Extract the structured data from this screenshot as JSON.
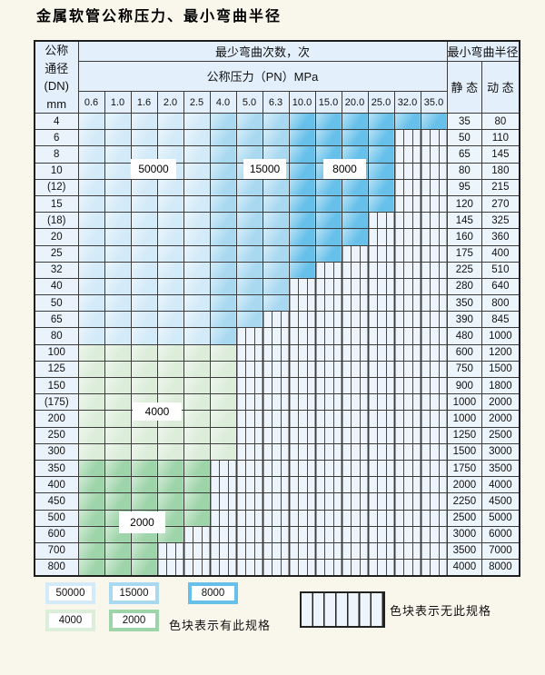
{
  "title": "金属软管公称压力、最小弯曲半径",
  "colors": {
    "c50000": "#d3eaf8",
    "c15000": "#a9d9f1",
    "c8000": "#66c0ea",
    "c4000": "#dcedda",
    "c2000": "#9ed4a9",
    "hatch_bg": "#eef4fb",
    "header_bg": "#e3effa",
    "grid": "#3c3c3c"
  },
  "table": {
    "header": {
      "dn_lines": [
        "公称",
        "通径",
        "(DN)",
        "mm"
      ],
      "bend_cycles_label": "最少弯曲次数，次",
      "bend_radius_label": "最小弯曲半径",
      "pressure_label": "公称压力（PN）MPa",
      "static_label": "静 态",
      "dynamic_label": "动 态",
      "pressures": [
        "0.6",
        "1.0",
        "1.6",
        "2.0",
        "2.5",
        "4.0",
        "5.0",
        "6.3",
        "10.0",
        "15.0",
        "20.0",
        "25.0",
        "32.0",
        "35.0"
      ]
    },
    "blue_shade_breaks": {
      "light_max_col": 5,
      "medium_max_col": 8
    },
    "rows": [
      {
        "dn": "4",
        "colored": 14,
        "zone": "blue",
        "static": "35",
        "dynamic": "80"
      },
      {
        "dn": "6",
        "colored": 12,
        "zone": "blue",
        "static": "50",
        "dynamic": "110"
      },
      {
        "dn": "8",
        "colored": 12,
        "zone": "blue",
        "static": "65",
        "dynamic": "145"
      },
      {
        "dn": "10",
        "colored": 12,
        "zone": "blue",
        "static": "80",
        "dynamic": "180"
      },
      {
        "dn": "(12)",
        "colored": 12,
        "zone": "blue",
        "static": "95",
        "dynamic": "215"
      },
      {
        "dn": "15",
        "colored": 12,
        "zone": "blue",
        "static": "120",
        "dynamic": "270"
      },
      {
        "dn": "(18)",
        "colored": 11,
        "zone": "blue",
        "static": "145",
        "dynamic": "325"
      },
      {
        "dn": "20",
        "colored": 11,
        "zone": "blue",
        "static": "160",
        "dynamic": "360"
      },
      {
        "dn": "25",
        "colored": 10,
        "zone": "blue",
        "static": "175",
        "dynamic": "400"
      },
      {
        "dn": "32",
        "colored": 9,
        "zone": "blue",
        "static": "225",
        "dynamic": "510"
      },
      {
        "dn": "40",
        "colored": 8,
        "zone": "blue",
        "static": "280",
        "dynamic": "640"
      },
      {
        "dn": "50",
        "colored": 8,
        "zone": "blue",
        "static": "350",
        "dynamic": "800"
      },
      {
        "dn": "65",
        "colored": 7,
        "zone": "blue",
        "static": "390",
        "dynamic": "845"
      },
      {
        "dn": "80",
        "colored": 6,
        "zone": "blue",
        "static": "480",
        "dynamic": "1000"
      },
      {
        "dn": "100",
        "colored": 6,
        "zone": "g4000",
        "static": "600",
        "dynamic": "1200"
      },
      {
        "dn": "125",
        "colored": 6,
        "zone": "g4000",
        "static": "750",
        "dynamic": "1500"
      },
      {
        "dn": "150",
        "colored": 6,
        "zone": "g4000",
        "static": "900",
        "dynamic": "1800"
      },
      {
        "dn": "(175)",
        "colored": 6,
        "zone": "g4000",
        "static": "1000",
        "dynamic": "2000"
      },
      {
        "dn": "200",
        "colored": 6,
        "zone": "g4000",
        "static": "1000",
        "dynamic": "2000"
      },
      {
        "dn": "250",
        "colored": 6,
        "zone": "g4000",
        "static": "1250",
        "dynamic": "2500"
      },
      {
        "dn": "300",
        "colored": 6,
        "zone": "g4000",
        "static": "1500",
        "dynamic": "3000"
      },
      {
        "dn": "350",
        "colored": 5,
        "zone": "g2000",
        "static": "1750",
        "dynamic": "3500"
      },
      {
        "dn": "400",
        "colored": 5,
        "zone": "g2000",
        "static": "2000",
        "dynamic": "4000"
      },
      {
        "dn": "450",
        "colored": 5,
        "zone": "g2000",
        "static": "2250",
        "dynamic": "4500"
      },
      {
        "dn": "500",
        "colored": 5,
        "zone": "g2000",
        "static": "2500",
        "dynamic": "5000"
      },
      {
        "dn": "600",
        "colored": 4,
        "zone": "g2000",
        "static": "3000",
        "dynamic": "6000"
      },
      {
        "dn": "700",
        "colored": 3,
        "zone": "g2000",
        "static": "3500",
        "dynamic": "7000"
      },
      {
        "dn": "800",
        "colored": 3,
        "zone": "g2000",
        "static": "4000",
        "dynamic": "8000"
      }
    ]
  },
  "overlay_labels": [
    {
      "text": "50000"
    },
    {
      "text": "15000"
    },
    {
      "text": "8000"
    },
    {
      "text": "4000"
    },
    {
      "text": "2000"
    }
  ],
  "legend": {
    "items": [
      {
        "label": "50000",
        "color_key": "c50000"
      },
      {
        "label": "15000",
        "color_key": "c15000"
      },
      {
        "label": "8000",
        "color_key": "c8000"
      },
      {
        "label": "4000",
        "color_key": "c4000"
      },
      {
        "label": "2000",
        "color_key": "c2000"
      }
    ],
    "has_spec_note": "色块表示有此规格",
    "no_spec_note": "色块表示无此规格"
  }
}
